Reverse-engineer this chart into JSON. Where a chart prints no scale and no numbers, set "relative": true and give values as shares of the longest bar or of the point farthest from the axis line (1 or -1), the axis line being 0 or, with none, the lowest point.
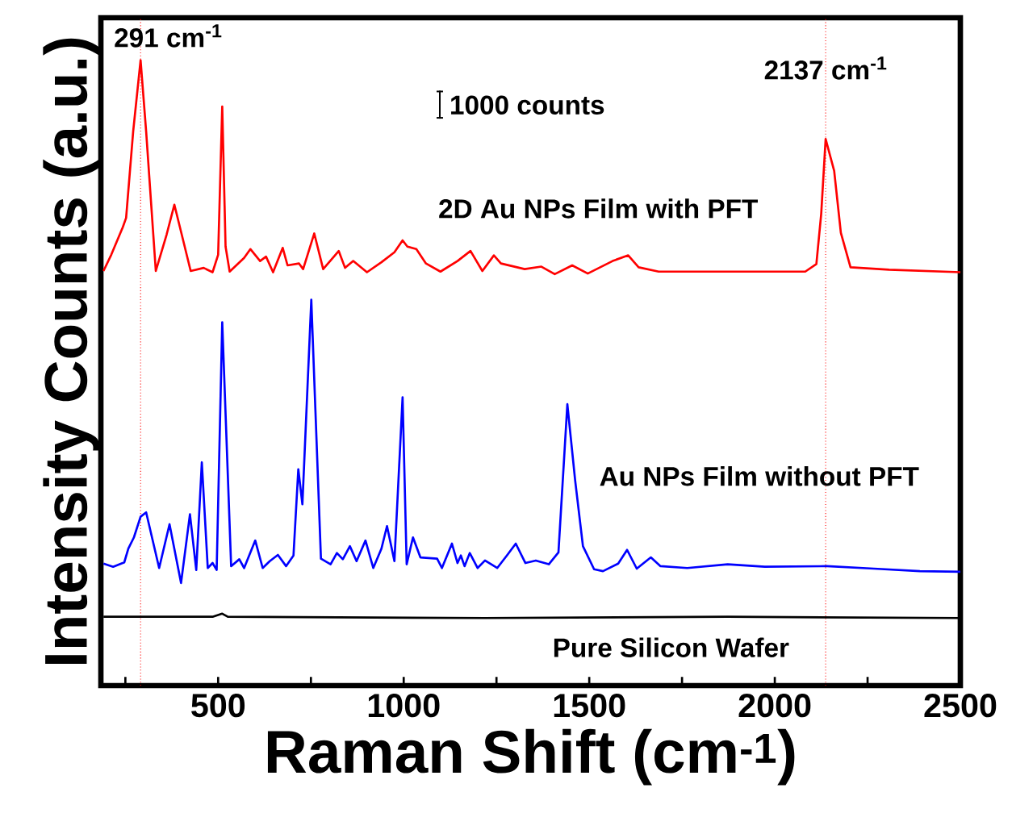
{
  "chart_data": {
    "type": "line",
    "relative": true,
    "xlabel": "Raman Shift (cm$^{-1}$)",
    "ylabel": "Intensity Counts (a.u.)",
    "xlim": [
      184,
      2500
    ],
    "xticks": [
      {
        "value": 250,
        "label": null
      },
      500,
      {
        "value": 750,
        "label": null
      },
      1000,
      {
        "value": 1250,
        "label": null
      },
      1500,
      {
        "value": 1750,
        "label": null
      },
      2000,
      {
        "value": 2250,
        "label": null
      },
      2500
    ],
    "grid": false,
    "marker": "none",
    "line_style": "solid",
    "tick_labels": "x",
    "annotations": [
      "1000 counts"
    ],
    "ref_lines": [
      {
        "axis": "x",
        "value": 291,
        "label": "291 cm$^{-1}$",
        "color": "#ff0000",
        "line_style": "dotted"
      },
      {
        "axis": "x",
        "value": 2137,
        "label": "2137 cm$^{-1}$",
        "color": "#ff0000",
        "line_style": "dotted"
      }
    ],
    "series": [
      {
        "name": "2D Au NPs Film with PFT",
        "color": "#ff0000",
        "x": [
          191,
          212,
          243,
          252,
          271,
          291,
          306,
          332,
          361,
          382,
          402,
          426,
          461,
          485,
          500,
          511,
          520,
          531,
          570,
          587,
          613,
          629,
          648,
          674,
          687,
          718,
          729,
          759,
          783,
          812,
          825,
          842,
          864,
          901,
          940,
          975,
          997,
          1010,
          1034,
          1060,
          1099,
          1145,
          1180,
          1212,
          1243,
          1262,
          1326,
          1371,
          1407,
          1454,
          1496,
          1563,
          1605,
          1633,
          1687,
          1805,
          1931,
          2082,
          2112,
          2125,
          2137,
          2160,
          2178,
          2204,
          2308,
          2500
        ],
        "values": [
          0.663,
          0.689,
          0.733,
          0.748,
          0.886,
          1.0,
          0.886,
          0.663,
          0.721,
          0.769,
          0.721,
          0.663,
          0.668,
          0.661,
          0.689,
          0.926,
          0.702,
          0.662,
          0.684,
          0.698,
          0.679,
          0.686,
          0.661,
          0.7,
          0.672,
          0.675,
          0.666,
          0.723,
          0.666,
          0.686,
          0.695,
          0.668,
          0.679,
          0.661,
          0.677,
          0.693,
          0.712,
          0.702,
          0.698,
          0.675,
          0.662,
          0.679,
          0.695,
          0.663,
          0.688,
          0.675,
          0.666,
          0.67,
          0.658,
          0.672,
          0.659,
          0.679,
          0.688,
          0.669,
          0.662,
          0.662,
          0.662,
          0.662,
          0.674,
          0.754,
          0.874,
          0.823,
          0.724,
          0.669,
          0.665,
          0.661
        ]
      },
      {
        "name": "Au NPs Film without PFT",
        "color": "#0000ff",
        "x": [
          191,
          217,
          247,
          258,
          273,
          291,
          306,
          341,
          369,
          400,
          424,
          441,
          456,
          472,
          485,
          496,
          511,
          535,
          557,
          570,
          600,
          620,
          639,
          661,
          683,
          703,
          716,
          727,
          751,
          777,
          803,
          820,
          836,
          855,
          873,
          897,
          918,
          940,
          955,
          975,
          997,
          1008,
          1025,
          1045,
          1090,
          1103,
          1130,
          1145,
          1154,
          1164,
          1178,
          1199,
          1219,
          1252,
          1278,
          1302,
          1328,
          1356,
          1391,
          1417,
          1441,
          1462,
          1483,
          1513,
          1537,
          1578,
          1602,
          1628,
          1666,
          1692,
          1764,
          1873,
          1973,
          2140,
          2267,
          2391,
          2500
        ],
        "values": [
          0.195,
          0.19,
          0.197,
          0.219,
          0.237,
          0.27,
          0.277,
          0.188,
          0.258,
          0.164,
          0.274,
          0.185,
          0.357,
          0.188,
          0.196,
          0.185,
          0.581,
          0.191,
          0.202,
          0.188,
          0.232,
          0.188,
          0.199,
          0.209,
          0.191,
          0.208,
          0.346,
          0.29,
          0.617,
          0.203,
          0.194,
          0.212,
          0.202,
          0.223,
          0.199,
          0.232,
          0.188,
          0.219,
          0.255,
          0.199,
          0.461,
          0.194,
          0.237,
          0.205,
          0.203,
          0.188,
          0.227,
          0.196,
          0.208,
          0.191,
          0.212,
          0.188,
          0.2,
          0.188,
          0.208,
          0.227,
          0.196,
          0.2,
          0.194,
          0.213,
          0.45,
          0.328,
          0.223,
          0.186,
          0.183,
          0.195,
          0.217,
          0.187,
          0.205,
          0.191,
          0.188,
          0.194,
          0.19,
          0.191,
          0.187,
          0.183,
          0.182
        ]
      },
      {
        "name": "Pure Silicon Wafer",
        "color": "#000000",
        "x": [
          191,
          485,
          511,
          526,
          1219,
          1873,
          2500
        ],
        "values": [
          0.11,
          0.11,
          0.115,
          0.11,
          0.108,
          0.11,
          0.108
        ]
      }
    ]
  }
}
